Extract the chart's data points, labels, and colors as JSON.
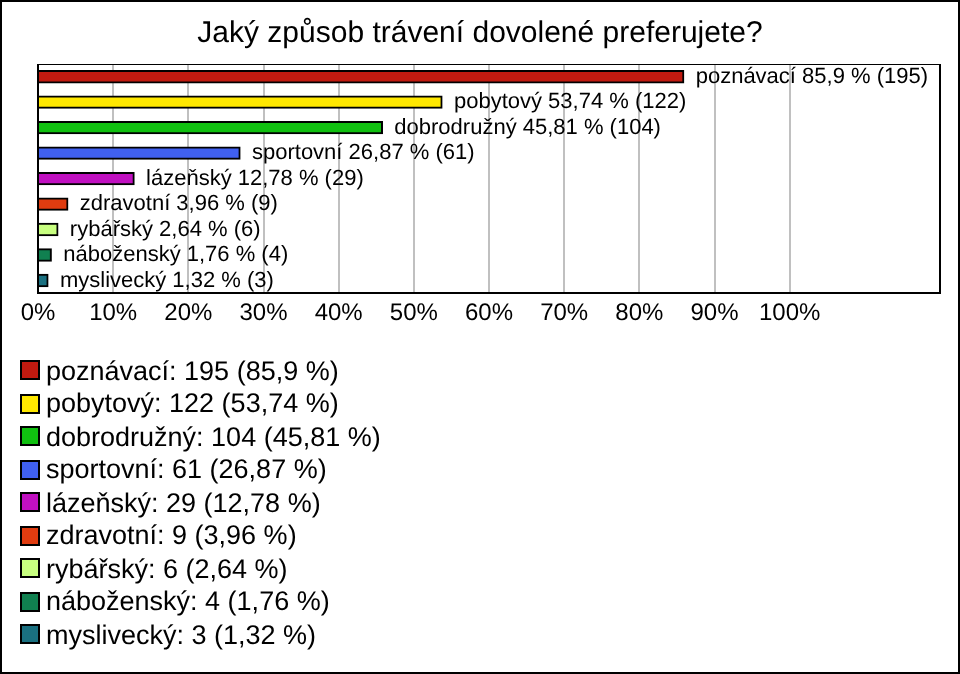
{
  "chart_data": {
    "type": "bar",
    "orientation": "horizontal",
    "title": "Jaký způsob trávení dovolené preferujete?",
    "categories": [
      null,
      null,
      null,
      null,
      null,
      null,
      null,
      null,
      null
    ],
    "values": [
      85.9,
      53.74,
      45.81,
      26.87,
      12.78,
      3.96,
      2.64,
      1.76,
      1.32
    ],
    "colors": [
      "#c01a10",
      "#ffe800",
      "#10c010",
      "#4060f0",
      "#c010c0",
      "#e03c10",
      "#c8ff80",
      "#108050",
      "#1a7080"
    ],
    "value_labels": [
      "poznávací 85,9 % (195)",
      "pobytový 53,74 % (122)",
      "dobrodružný 45,81 % (104)",
      "sportovní 26,87 % (61)",
      "lázeňský 12,78 % (29)",
      "zdravotní 3,96 % (9)",
      "rybářský 2,64 % (6)",
      "náboženský 1,76 % (4)",
      "myslivecký 1,32 % (3)"
    ],
    "xlim": [
      0,
      120
    ],
    "xticks": [
      {
        "value": 0,
        "label": "0%"
      },
      {
        "value": 10,
        "label": "10%"
      },
      {
        "value": 20,
        "label": "20%"
      },
      {
        "value": 30,
        "label": "30%"
      },
      {
        "value": 40,
        "label": "40%"
      },
      {
        "value": 50,
        "label": "50%"
      },
      {
        "value": 60,
        "label": "60%"
      },
      {
        "value": 70,
        "label": "70%"
      },
      {
        "value": 80,
        "label": "80%"
      },
      {
        "value": 90,
        "label": "90%"
      },
      {
        "value": 100,
        "label": "100%"
      }
    ],
    "grid": "x",
    "tick_labels": "x",
    "annotations": [
      "poznávací: 195 (85,9 %)",
      "pobytový: 122 (53,74 %)",
      "dobrodružný: 104 (45,81 %)",
      "sportovní: 61 (26,87 %)",
      "lázeňský: 29 (12,78 %)",
      "zdravotní: 9 (3,96 %)",
      "rybářský: 6 (2,64 %)",
      "náboženský: 4 (1,76 %)",
      "myslivecký: 3 (1,32 %)"
    ]
  }
}
